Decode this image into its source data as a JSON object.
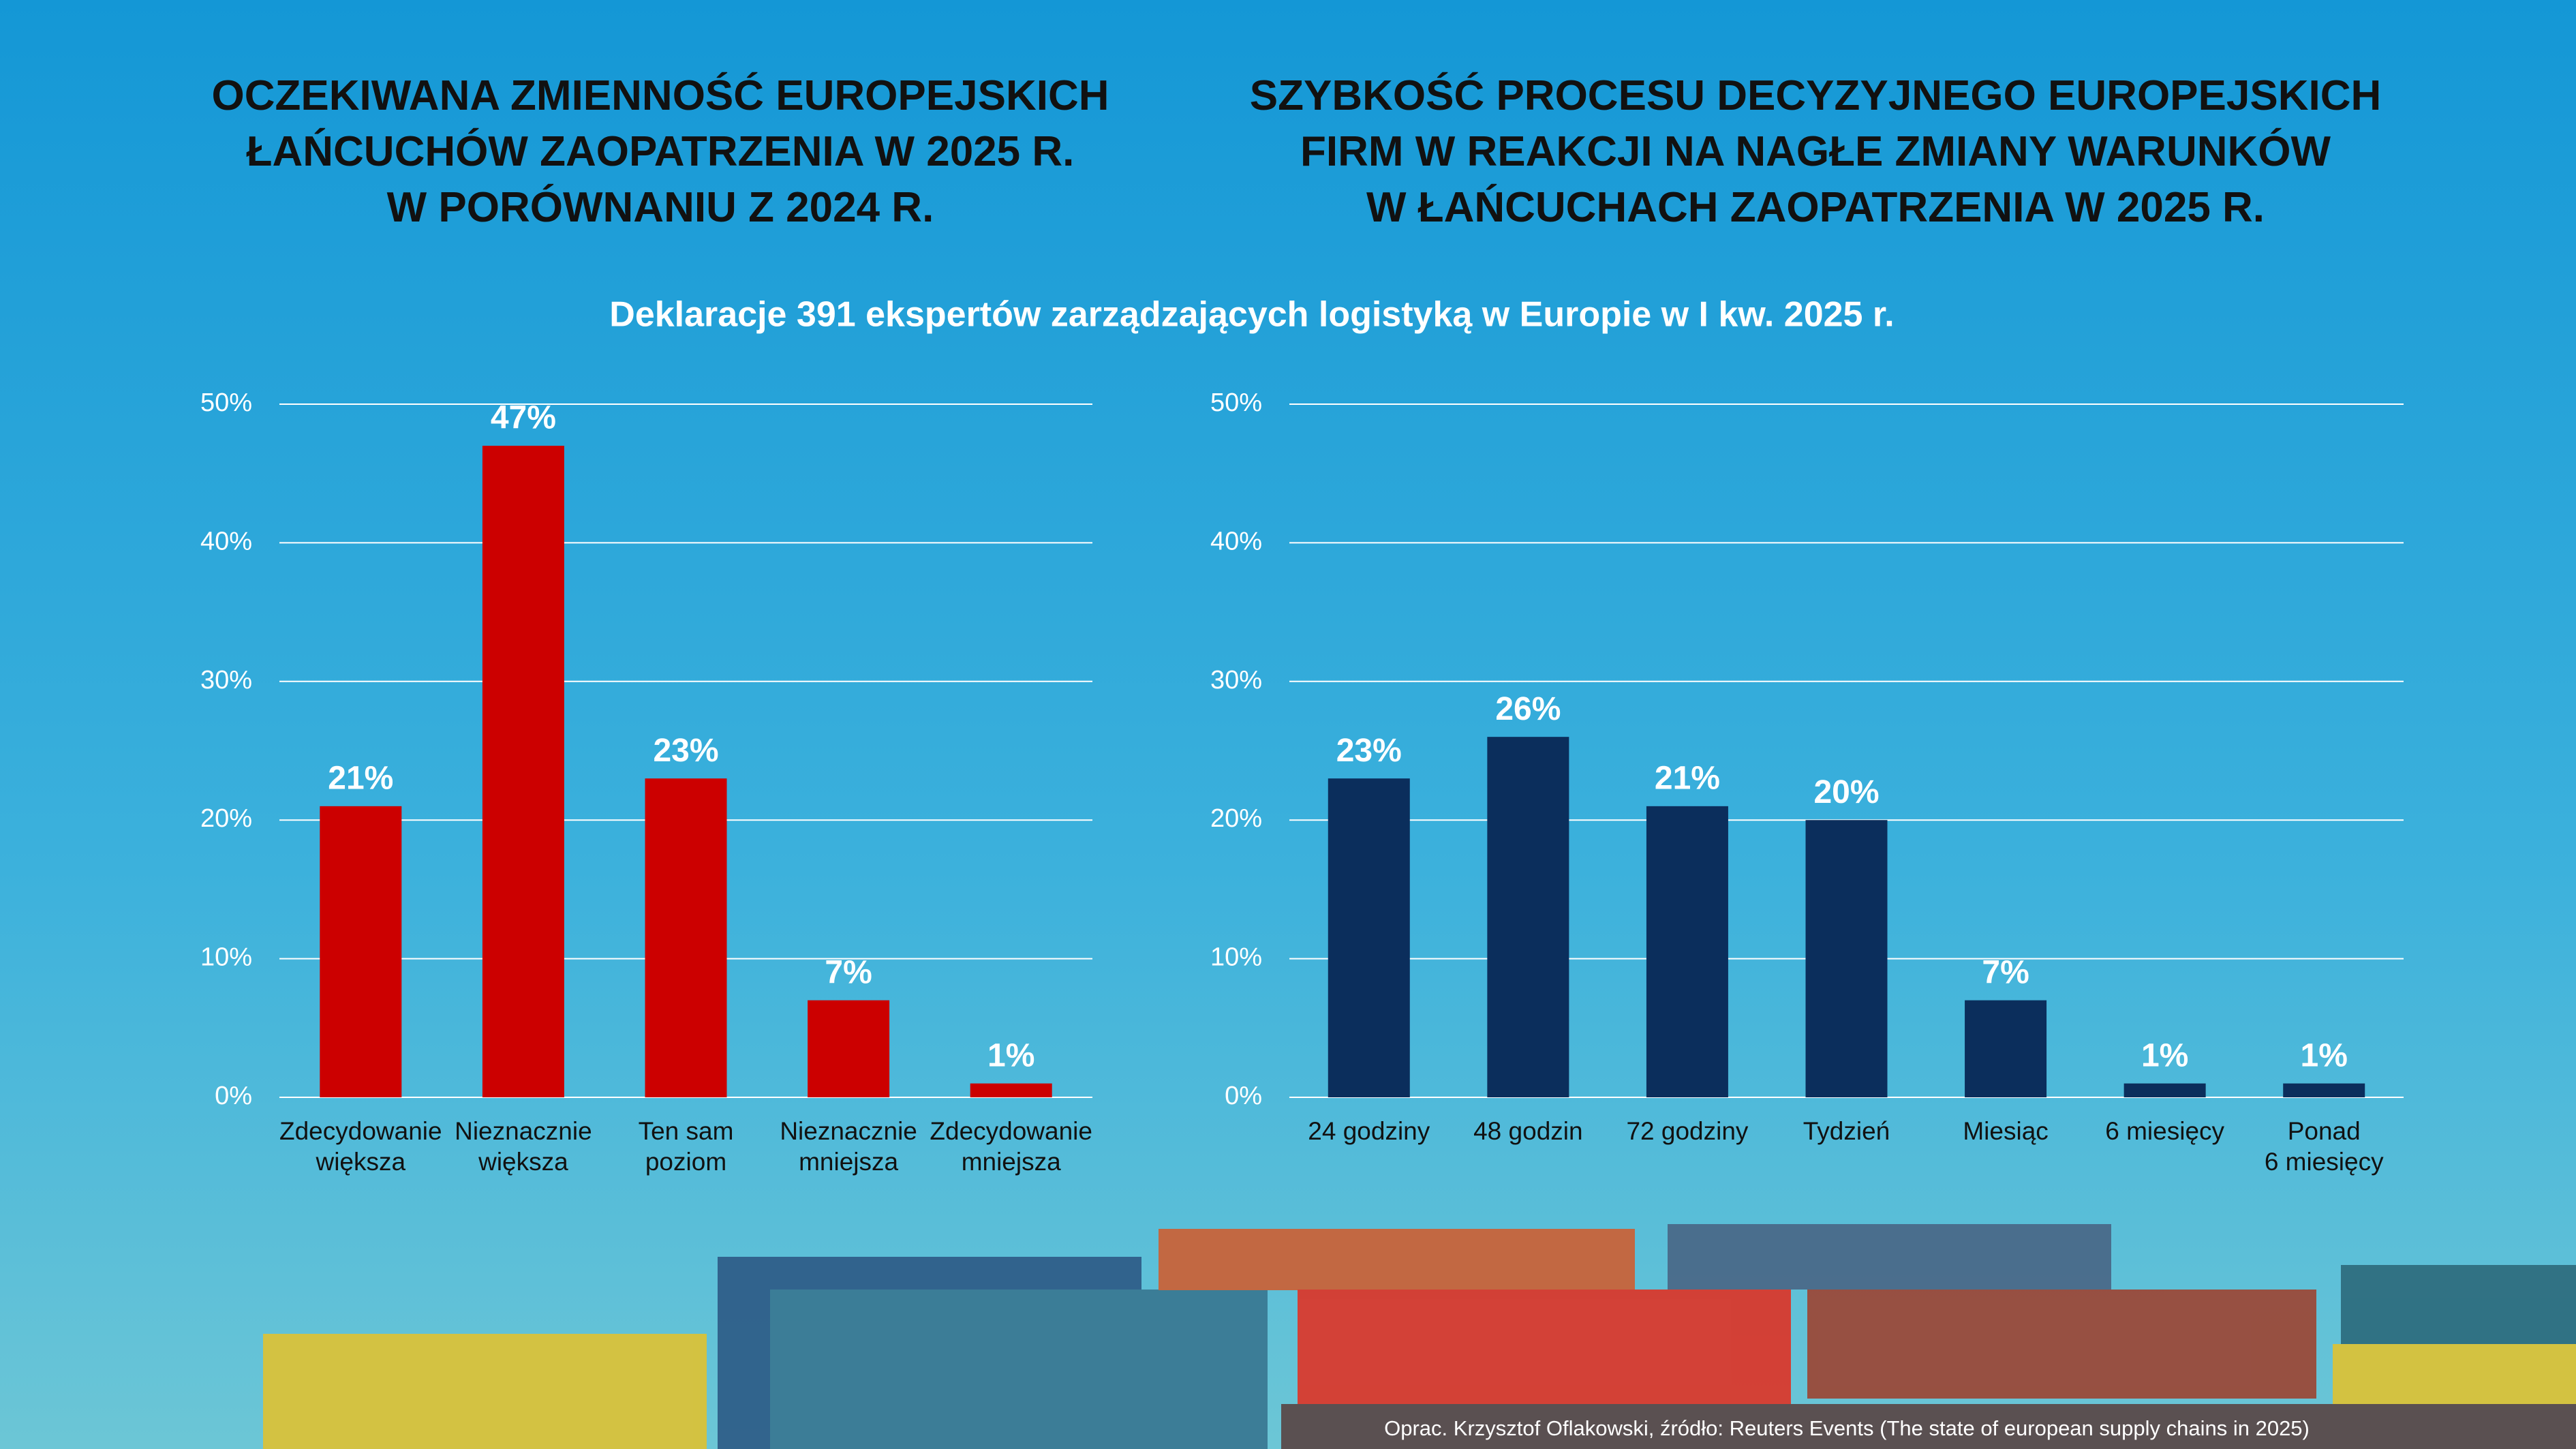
{
  "subtitle": "Deklaracje 391 ekspertów zarządzających logistyką w Europie w I kw. 2025 r.",
  "source": "Oprac. Krzysztof Oflakowski, źródło: Reuters Events (The state of european supply chains in 2025)",
  "chart_data": [
    {
      "type": "bar",
      "title": "OCZEKIWANA ZMIENNOŚĆ EUROPEJSKICH\nŁAŃCUCHÓW ZAOPATRZENIA W 2025 R.\nW PORÓWNANIU Z 2024 R.",
      "categories": [
        "Zdecydowanie\nwiększa",
        "Nieznacznie\nwiększa",
        "Ten sam\npoziom",
        "Nieznacznie\nmniejsza",
        "Zdecydowanie\nmniejsza"
      ],
      "values": [
        21,
        47,
        23,
        7,
        1
      ],
      "value_labels": [
        "21%",
        "47%",
        "23%",
        "7%",
        "1%"
      ],
      "color": "#cc0000",
      "ylim": [
        0,
        50
      ],
      "yticks": [
        {
          "value": 0,
          "label": "0%"
        },
        {
          "value": 10,
          "label": "10%"
        },
        {
          "value": 20,
          "label": "20%"
        },
        {
          "value": 30,
          "label": "30%"
        },
        {
          "value": 40,
          "label": "40%"
        },
        {
          "value": 50,
          "label": "50%"
        }
      ],
      "grid": true
    },
    {
      "type": "bar",
      "title": "SZYBKOŚĆ PROCESU DECYZYJNEGO EUROPEJSKICH\nFIRM W REAKCJI NA NAGŁE ZMIANY WARUNKÓW\nW ŁAŃCUCHACH ZAOPATRZENIA W 2025 R.",
      "categories": [
        "24 godziny",
        "48 godzin",
        "72 godziny",
        "Tydzień",
        "Miesiąc",
        "6 miesięcy",
        "Ponad\n6 miesięcy"
      ],
      "values": [
        23,
        26,
        21,
        20,
        7,
        1,
        1
      ],
      "value_labels": [
        "23%",
        "26%",
        "21%",
        "20%",
        "7%",
        "1%",
        "1%"
      ],
      "color": "#0b2e5c",
      "ylim": [
        0,
        50
      ],
      "yticks": [
        {
          "value": 0,
          "label": "0%"
        },
        {
          "value": 10,
          "label": "10%"
        },
        {
          "value": 20,
          "label": "20%"
        },
        {
          "value": 30,
          "label": "30%"
        },
        {
          "value": 40,
          "label": "40%"
        },
        {
          "value": 50,
          "label": "50%"
        }
      ],
      "grid": true
    }
  ]
}
